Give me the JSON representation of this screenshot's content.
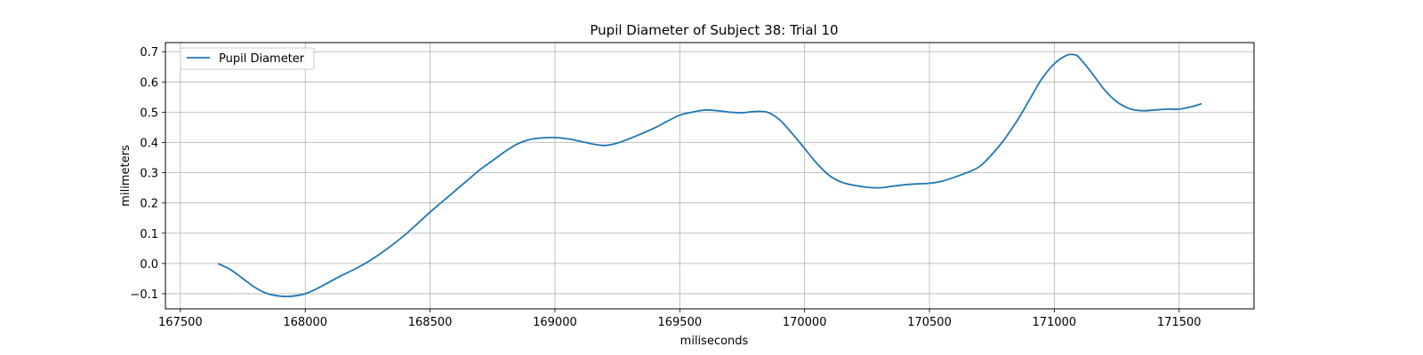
{
  "chart_data": {
    "type": "line",
    "title": "Pupil Diameter of Subject 38: Trial 10",
    "xlabel": "miliseconds",
    "ylabel": "milimeters",
    "xlim": [
      167440,
      171800
    ],
    "ylim": [
      -0.15,
      0.73
    ],
    "xticks": [
      167500,
      168000,
      168500,
      169000,
      169500,
      170000,
      170500,
      171000,
      171500
    ],
    "yticks": [
      -0.1,
      0.0,
      0.1,
      0.2,
      0.3,
      0.4,
      0.5,
      0.6,
      0.7
    ],
    "ytick_labels": [
      "−0.1",
      "0.0",
      "0.1",
      "0.2",
      "0.3",
      "0.4",
      "0.5",
      "0.6",
      "0.7"
    ],
    "grid": true,
    "legend_position": "top-left",
    "series": [
      {
        "name": "Pupil Diameter",
        "color": "#1f77b4",
        "x": [
          167650,
          167700,
          167750,
          167800,
          167850,
          167900,
          167950,
          168000,
          168050,
          168100,
          168150,
          168200,
          168250,
          168300,
          168350,
          168400,
          168450,
          168500,
          168550,
          168600,
          168650,
          168700,
          168750,
          168800,
          168850,
          168900,
          168950,
          169000,
          169050,
          169100,
          169150,
          169200,
          169250,
          169300,
          169350,
          169400,
          169450,
          169500,
          169550,
          169600,
          169650,
          169700,
          169750,
          169800,
          169850,
          169900,
          169950,
          170000,
          170050,
          170100,
          170150,
          170200,
          170250,
          170300,
          170350,
          170400,
          170450,
          170500,
          170550,
          170600,
          170650,
          170700,
          170750,
          170800,
          170850,
          170900,
          170950,
          171000,
          171050,
          171080,
          171100,
          171150,
          171200,
          171250,
          171300,
          171350,
          171400,
          171450,
          171500,
          171550,
          171590
        ],
        "values": [
          0.0,
          -0.02,
          -0.05,
          -0.08,
          -0.1,
          -0.108,
          -0.108,
          -0.1,
          -0.082,
          -0.06,
          -0.038,
          -0.018,
          0.005,
          0.032,
          0.062,
          0.095,
          0.132,
          0.17,
          0.205,
          0.24,
          0.275,
          0.31,
          0.34,
          0.37,
          0.395,
          0.41,
          0.415,
          0.416,
          0.412,
          0.404,
          0.395,
          0.39,
          0.398,
          0.413,
          0.43,
          0.448,
          0.47,
          0.49,
          0.5,
          0.507,
          0.505,
          0.5,
          0.498,
          0.502,
          0.5,
          0.475,
          0.43,
          0.38,
          0.33,
          0.29,
          0.268,
          0.258,
          0.252,
          0.25,
          0.255,
          0.26,
          0.263,
          0.265,
          0.272,
          0.285,
          0.3,
          0.32,
          0.36,
          0.41,
          0.47,
          0.54,
          0.61,
          0.66,
          0.688,
          0.69,
          0.68,
          0.63,
          0.575,
          0.535,
          0.512,
          0.505,
          0.507,
          0.51,
          0.51,
          0.518,
          0.528
        ]
      }
    ]
  }
}
